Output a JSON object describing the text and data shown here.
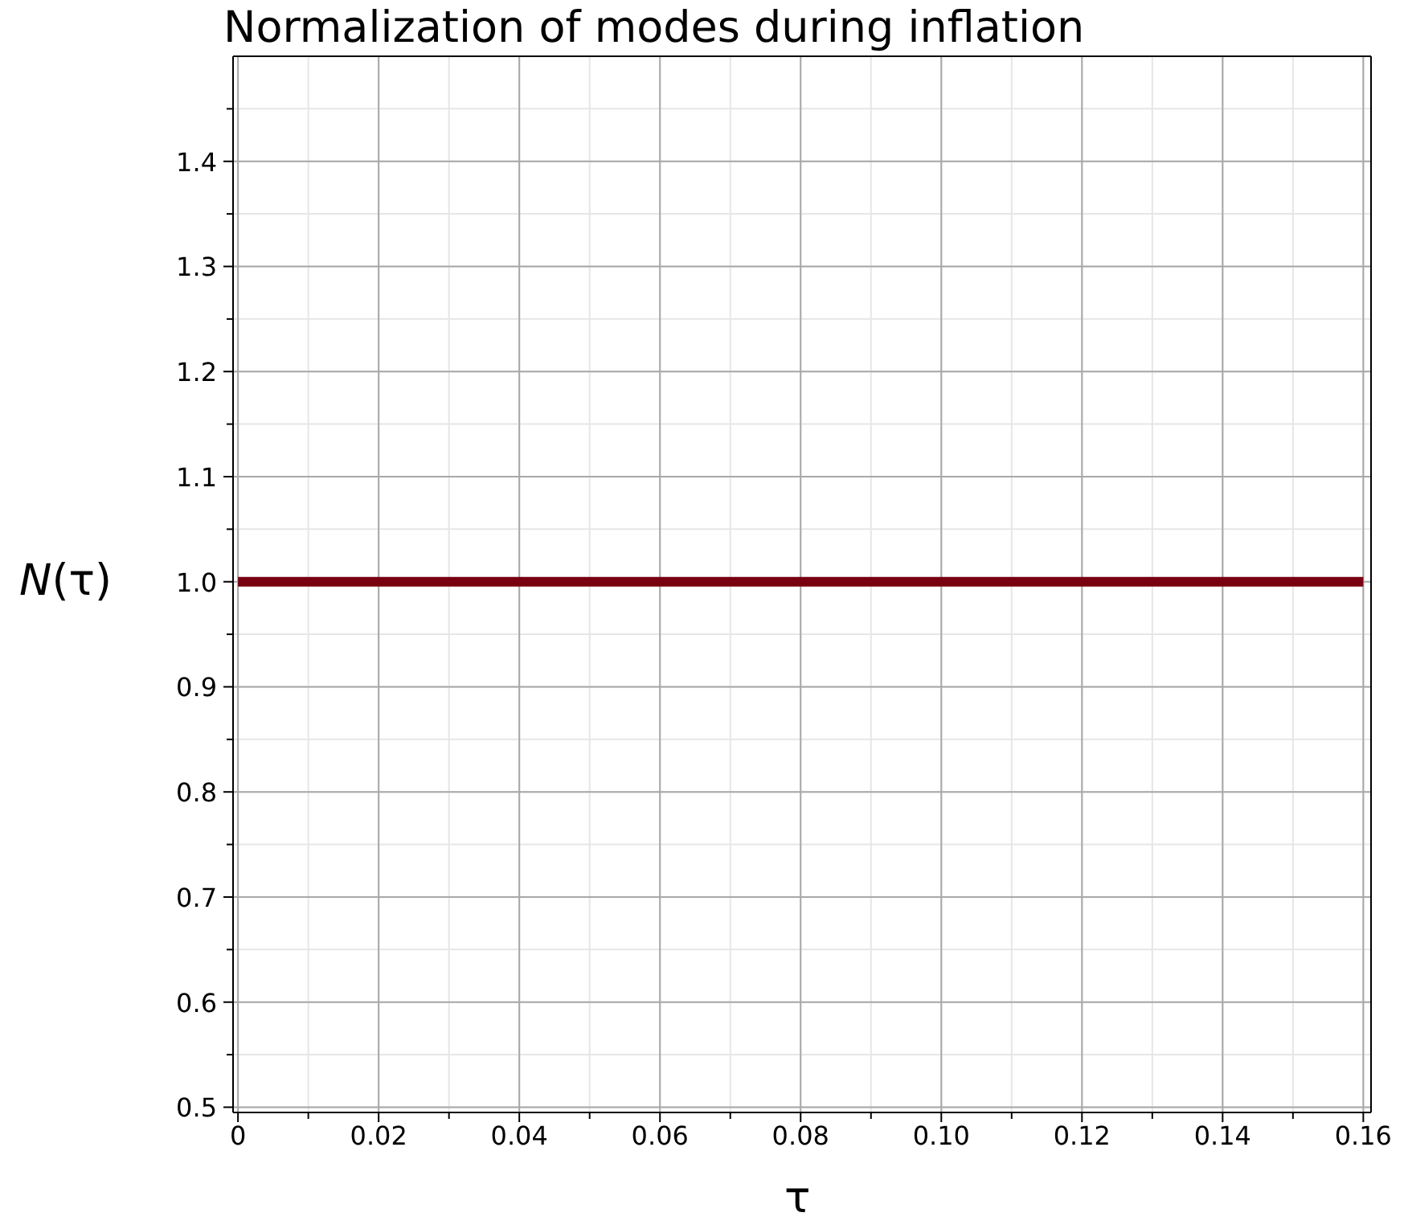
{
  "chart_data": {
    "type": "line",
    "title": "Normalization of modes during inflation",
    "xlabel": "τ",
    "ylabel": "N(τ)",
    "x": [
      0,
      0.16
    ],
    "series": [
      {
        "color": "#780010",
        "values": [
          1,
          1
        ]
      }
    ],
    "xlim": [
      -0.0007,
      0.1611
    ],
    "ylim": [
      0.495,
      1.5
    ],
    "xticks": [
      0,
      {
        "value": 0.01,
        "label": null
      },
      0.02,
      {
        "value": 0.03,
        "label": null
      },
      0.04,
      {
        "value": 0.05,
        "label": null
      },
      0.06,
      {
        "value": 0.07,
        "label": null
      },
      0.08,
      {
        "value": 0.09,
        "label": null
      },
      {
        "value": 0.1,
        "label": "0.10"
      },
      {
        "value": 0.11,
        "label": null
      },
      0.12,
      {
        "value": 0.13,
        "label": null
      },
      0.14,
      {
        "value": 0.15,
        "label": null
      },
      0.16
    ],
    "yticks": [
      0.5,
      {
        "value": 0.55,
        "label": null
      },
      0.6,
      {
        "value": 0.65,
        "label": null
      },
      0.7,
      {
        "value": 0.75,
        "label": null
      },
      0.8,
      {
        "value": 0.85,
        "label": null
      },
      0.9,
      {
        "value": 0.95,
        "label": null
      },
      {
        "value": 1,
        "label": "1.0"
      },
      {
        "value": 1.05,
        "label": null
      },
      1.1,
      {
        "value": 1.15,
        "label": null
      },
      1.2,
      {
        "value": 1.25,
        "label": null
      },
      1.3,
      {
        "value": 1.35,
        "label": null
      },
      1.4,
      {
        "value": 1.45,
        "label": null
      }
    ],
    "grid": true,
    "marker": "none",
    "line_style": "solid"
  }
}
